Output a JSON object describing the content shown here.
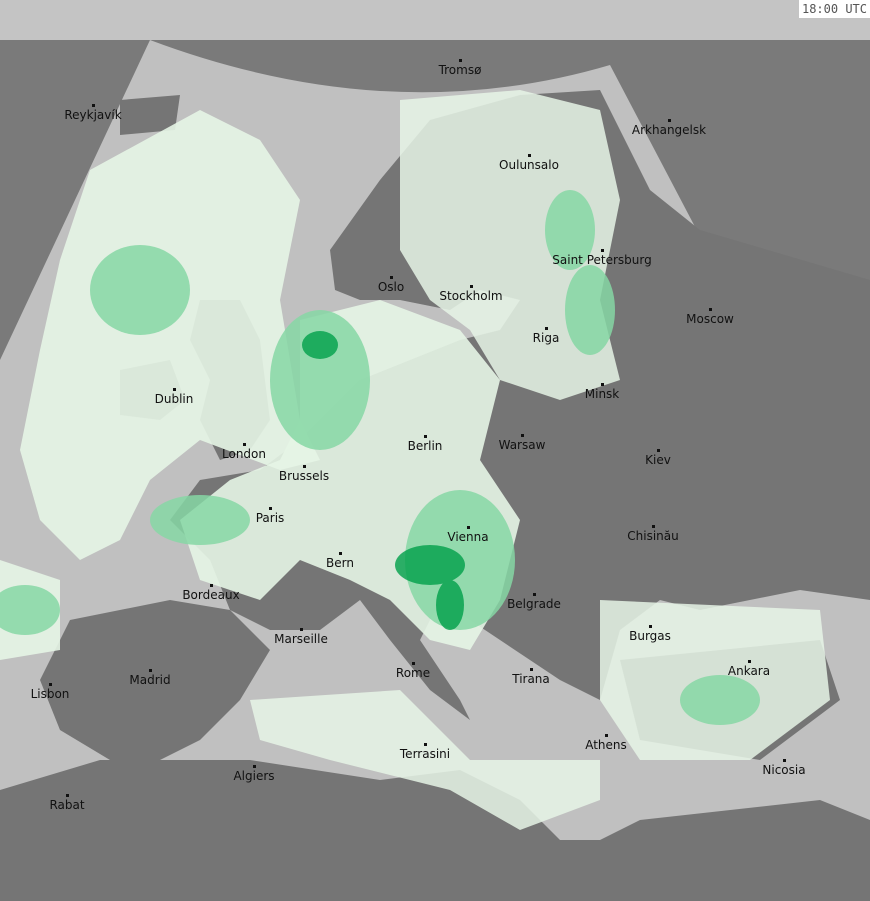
{
  "timestamp": "18:00 UTC",
  "colors": {
    "outside": "#7a7a7a",
    "top_band": "#c4c4c4",
    "sea": "#c0c0c0",
    "land": "#757575",
    "cloud": "#e6f5e6",
    "light_precip": "#86d7a4",
    "heavy_precip": "#00a04a"
  },
  "cities": [
    {
      "name": "Tromsø"
    },
    {
      "name": "Reykjavík"
    },
    {
      "name": "Arkhangelsk"
    },
    {
      "name": "Oulunsalo"
    },
    {
      "name": "Saint Petersburg"
    },
    {
      "name": "Oslo"
    },
    {
      "name": "Stockholm"
    },
    {
      "name": "Moscow"
    },
    {
      "name": "Riga"
    },
    {
      "name": "Dublin"
    },
    {
      "name": "Minsk"
    },
    {
      "name": "Berlin"
    },
    {
      "name": "Warsaw"
    },
    {
      "name": "London"
    },
    {
      "name": "Brussels"
    },
    {
      "name": "Kiev"
    },
    {
      "name": "Paris"
    },
    {
      "name": "Vienna"
    },
    {
      "name": "Chisinău"
    },
    {
      "name": "Bern"
    },
    {
      "name": "Bordeaux"
    },
    {
      "name": "Belgrade"
    },
    {
      "name": "Marseille"
    },
    {
      "name": "Burgas"
    },
    {
      "name": "Madrid"
    },
    {
      "name": "Rome"
    },
    {
      "name": "Tirana"
    },
    {
      "name": "Ankara"
    },
    {
      "name": "Lisbon"
    },
    {
      "name": "Athens"
    },
    {
      "name": "Terrasini"
    },
    {
      "name": "Algiers"
    },
    {
      "name": "Nicosia"
    },
    {
      "name": "Rabat"
    }
  ]
}
